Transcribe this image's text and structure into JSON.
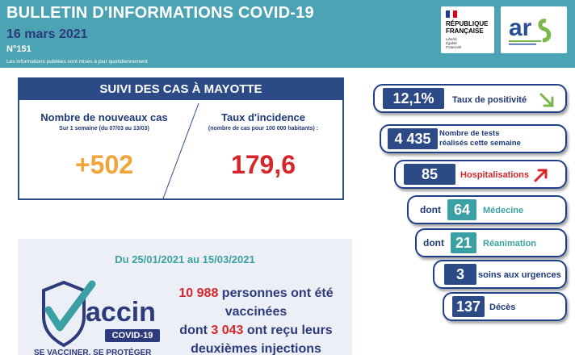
{
  "header": {
    "title": "BULLETIN D'INFORMATIONS COVID-19",
    "date": "16 mars 2021",
    "number": "N°151",
    "note": "Les informations publiées sont mises à jour quotidiennement",
    "rf_title": "RÉPUBLIQUE\nFRANÇAISE",
    "rf_motto": "Liberté\nÉgalité\nFraternité",
    "ars_logo_text": "ars",
    "colors": {
      "banner": "#4ba3b3",
      "navy": "#2d3a7c"
    }
  },
  "suivi": {
    "title": "SUIVI DES CAS À MAYOTTE",
    "new_cases_title": "Nombre de nouveaux cas",
    "new_cases_sub": "Sur 1 semaine (du 07/03 au 13/03)",
    "new_cases_value": "+502",
    "incidence_title": "Taux d'incidence",
    "incidence_sub": "(nombre de cas pour 100 000 habitants) :",
    "incidence_value": "179,6"
  },
  "vaccin": {
    "dates": "Du 25/01/2021 au 15/03/2021",
    "logo_word": "accin",
    "logo_badge": "COVID-19",
    "logo_slogan": "SE VACCINER, SE PROTÉGER",
    "count_vaccinated": "10 988",
    "line1_rest": " personnes ont été",
    "line2": "vaccinées",
    "line3_pre": "dont ",
    "count_second": "3 043",
    "line3_rest": " ont reçu leurs",
    "line4": "deuxièmes injections"
  },
  "indicators": {
    "positivity_value": "12,1%",
    "positivity_label": "Taux de positivité",
    "positivity_trend": "down-right-arrow",
    "tests_value": "4 435",
    "tests_label": "Nombre de tests\nréalisés cette semaine",
    "hosp_value": "85",
    "hosp_label": "Hospitalisations",
    "hosp_trend": "up-right-arrow",
    "dont_label": "dont",
    "medecine_value": "64",
    "medecine_label": "Médecine",
    "reanimation_value": "21",
    "reanimation_label": "Réanimation",
    "urgences_value": "3",
    "urgences_label": "soins aux urgences",
    "deces_value": "137",
    "deces_label": "Décès"
  }
}
